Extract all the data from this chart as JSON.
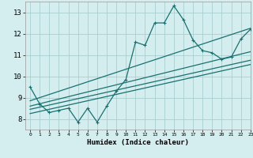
{
  "xlabel": "Humidex (Indice chaleur)",
  "bg_color": "#d4eef0",
  "grid_color": "#aacece",
  "line_color": "#1a7070",
  "xlim": [
    -0.5,
    23
  ],
  "ylim": [
    7.5,
    13.5
  ],
  "xticks": [
    0,
    1,
    2,
    3,
    4,
    5,
    6,
    7,
    8,
    9,
    10,
    11,
    12,
    13,
    14,
    15,
    16,
    17,
    18,
    19,
    20,
    21,
    22,
    23
  ],
  "yticks": [
    8,
    9,
    10,
    11,
    12,
    13
  ],
  "main_x": [
    0,
    1,
    2,
    3,
    4,
    5,
    6,
    7,
    8,
    9,
    10,
    11,
    12,
    13,
    14,
    15,
    16,
    17,
    18,
    19,
    20,
    21,
    22,
    23
  ],
  "main_y": [
    9.5,
    8.7,
    8.3,
    8.4,
    8.5,
    7.85,
    8.5,
    7.85,
    8.6,
    9.3,
    9.85,
    11.6,
    11.45,
    12.5,
    12.5,
    13.3,
    12.65,
    11.7,
    11.2,
    11.1,
    10.8,
    10.9,
    11.75,
    12.2
  ],
  "reg_lines": [
    {
      "x0": 0,
      "x1": 23,
      "y0": 8.85,
      "y1": 12.25
    },
    {
      "x0": 0,
      "x1": 23,
      "y0": 8.6,
      "y1": 11.15
    },
    {
      "x0": 0,
      "x1": 23,
      "y0": 8.45,
      "y1": 10.75
    },
    {
      "x0": 0,
      "x1": 23,
      "y0": 8.25,
      "y1": 10.55
    }
  ]
}
